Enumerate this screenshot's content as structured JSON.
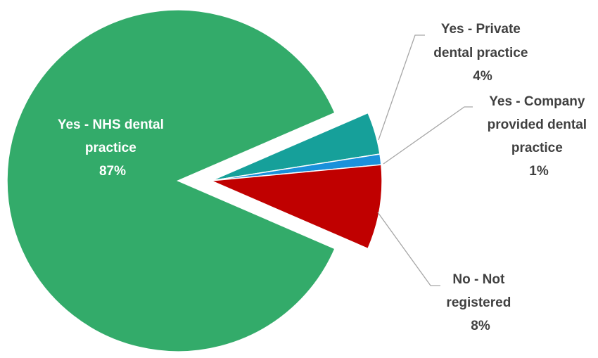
{
  "chart_data": {
    "type": "pie",
    "slices": [
      {
        "label": "Yes - NHS dental practice",
        "value": 87,
        "value_label": "87%",
        "color": "#33ab6a",
        "exploded": true
      },
      {
        "label": "Yes - Private dental practice",
        "value": 4,
        "value_label": "4%",
        "color": "#16a09a"
      },
      {
        "label": "Yes - Company provided dental practice",
        "value": 1,
        "value_label": "1%",
        "color": "#1a91db"
      },
      {
        "label": "No - Not registered",
        "value": 8,
        "value_label": "8%",
        "color": "#c00000"
      }
    ],
    "label_lines": [
      [
        "Yes - NHS dental",
        "practice",
        "87%"
      ],
      [
        "Yes - Private",
        "dental practice",
        "4%"
      ],
      [
        "Yes - Company",
        "provided dental",
        "practice",
        "1%"
      ],
      [
        "No - Not",
        "registered",
        "8%"
      ]
    ],
    "legend": "none"
  }
}
